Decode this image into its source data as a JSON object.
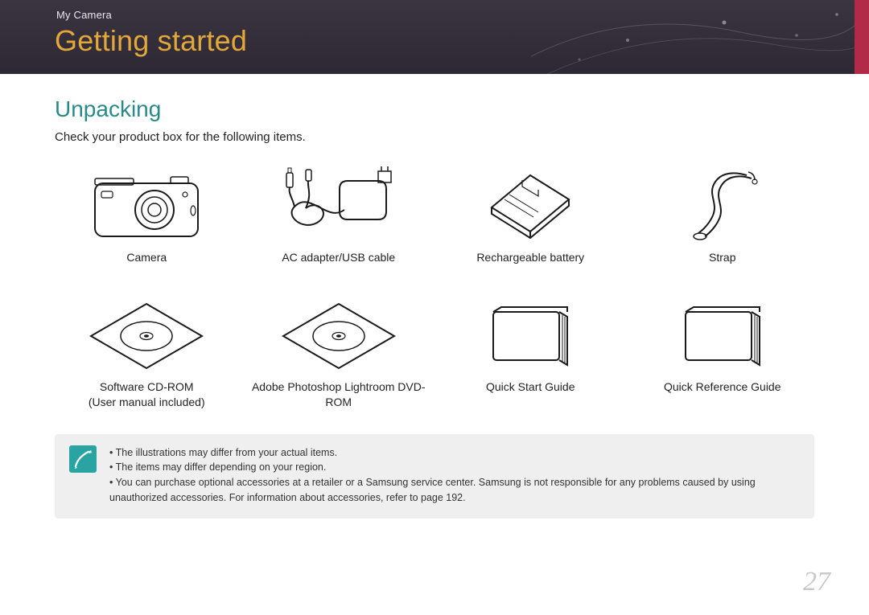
{
  "header": {
    "breadcrumb": "My Camera",
    "chapter_title": "Getting started",
    "banner_bg_gradient": [
      "#3a3540",
      "#2d2834"
    ],
    "accent_stripe_color": "#b12b48",
    "title_color": "#e4a73a"
  },
  "section": {
    "title": "Unpacking",
    "title_color": "#2a8a8a",
    "intro": "Check your product box for the following items."
  },
  "items": [
    {
      "label": "Camera"
    },
    {
      "label": "AC adapter/USB cable"
    },
    {
      "label": "Rechargeable battery"
    },
    {
      "label": "Strap"
    },
    {
      "label": "Software CD-ROM\n(User manual included)"
    },
    {
      "label": "Adobe Photoshop Lightroom DVD-ROM"
    },
    {
      "label": "Quick Start Guide"
    },
    {
      "label": "Quick Reference Guide"
    }
  ],
  "note": {
    "icon_bg": "#2aa3a3",
    "box_bg": "#efefef",
    "bullets": [
      "The illustrations may differ from your actual items.",
      "The items may differ depending on your region.",
      "You can purchase optional accessories at a retailer or a Samsung service center. Samsung is not responsible for any problems caused by using unauthorized accessories. For information about accessories, refer to page 192."
    ]
  },
  "page_number": "27",
  "typography": {
    "chapter_title_fontsize": 36,
    "section_title_fontsize": 28,
    "body_fontsize": 15,
    "item_label_fontsize": 14,
    "note_fontsize": 12.5,
    "page_number_fontsize": 34
  },
  "illustration_stroke": "#1a1a1a"
}
